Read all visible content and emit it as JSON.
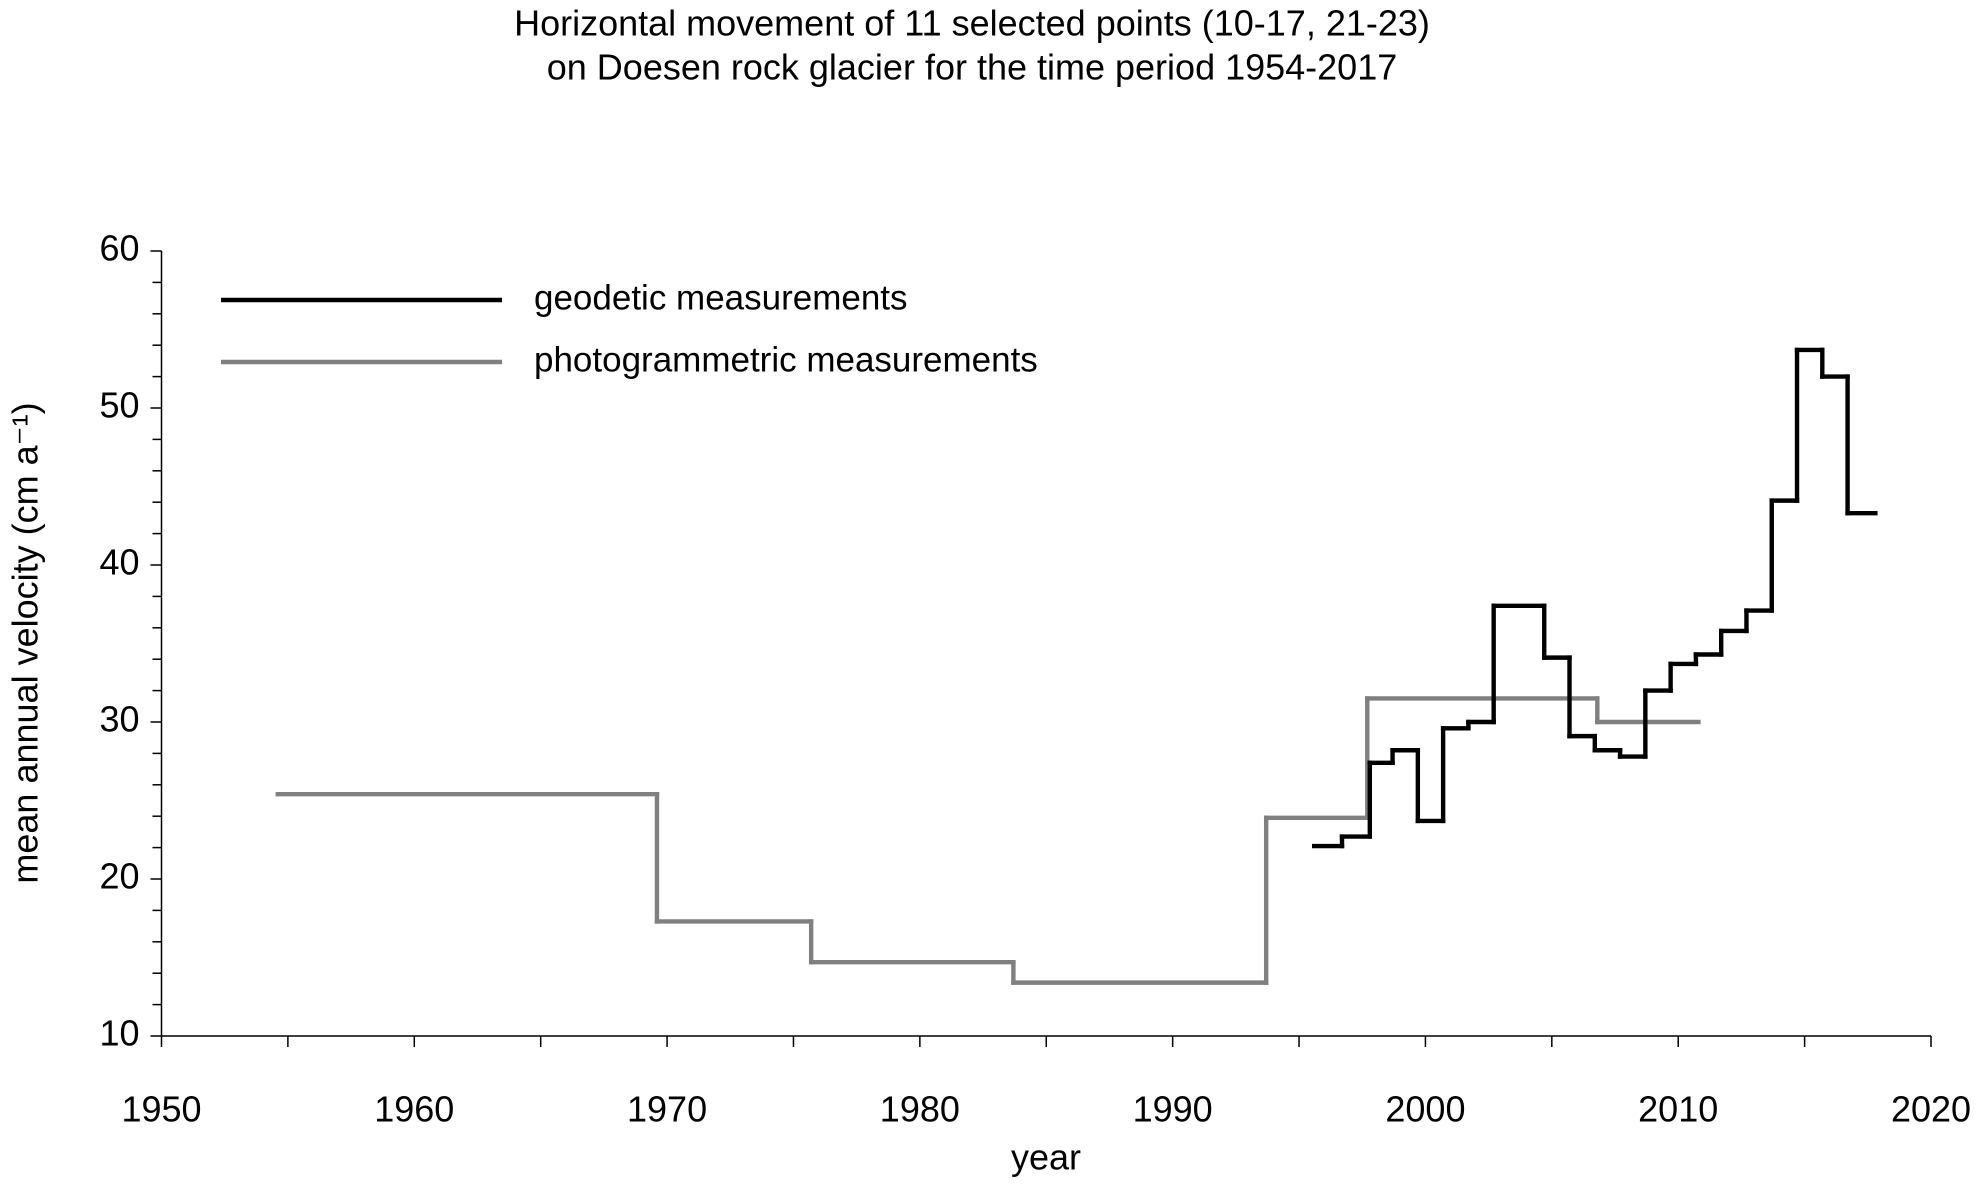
{
  "chart_data": {
    "type": "step",
    "title": [
      "Horizontal movement of 11 selected points (10-17, 21-23)",
      "on Doesen rock glacier for the time period 1954-2017"
    ],
    "x_label": "year",
    "y_label": "mean annual velocity (cm a⁻¹)",
    "xlim": [
      1950,
      2020
    ],
    "xticks": [
      1950,
      1960,
      1970,
      1980,
      1990,
      2000,
      2010,
      2020
    ],
    "xminorticks": [
      1955,
      1965,
      1975,
      1985,
      1995,
      2005,
      2015
    ],
    "ylim": [
      10,
      60
    ],
    "yticks": [
      10,
      20,
      30,
      40,
      50,
      60
    ],
    "yminorticks": [
      12,
      14,
      16,
      18,
      22,
      24,
      26,
      28,
      32,
      34,
      36,
      38,
      42,
      44,
      46,
      48,
      52,
      54,
      56,
      58
    ],
    "series": [
      {
        "name": "geodetic measurements",
        "color": "#000000",
        "bins": [
          1995.6,
          1996.7,
          1997.8,
          1998.7,
          1999.7,
          2000.7,
          2001.7,
          2002.7,
          2004.7,
          2005.7,
          2006.7,
          2007.7,
          2008.7,
          2009.7,
          2010.7,
          2011.7,
          2012.7,
          2013.7,
          2014.7,
          2015.7,
          2016.7,
          2017.8
        ],
        "values": [
          22.1,
          22.7,
          27.4,
          28.2,
          23.7,
          29.6,
          30.0,
          37.4,
          34.1,
          29.1,
          28.2,
          27.8,
          32.0,
          33.7,
          34.3,
          35.8,
          37.1,
          44.1,
          53.7,
          52.0,
          43.3
        ]
      },
      {
        "name": "photogrammetric measurements",
        "color": "#808080",
        "bins": [
          1954.6,
          1969.6,
          1975.7,
          1983.7,
          1993.7,
          1997.7,
          2006.8,
          2010.8
        ],
        "values": [
          25.4,
          17.3,
          14.7,
          13.4,
          23.9,
          31.5,
          30.0
        ]
      }
    ]
  }
}
